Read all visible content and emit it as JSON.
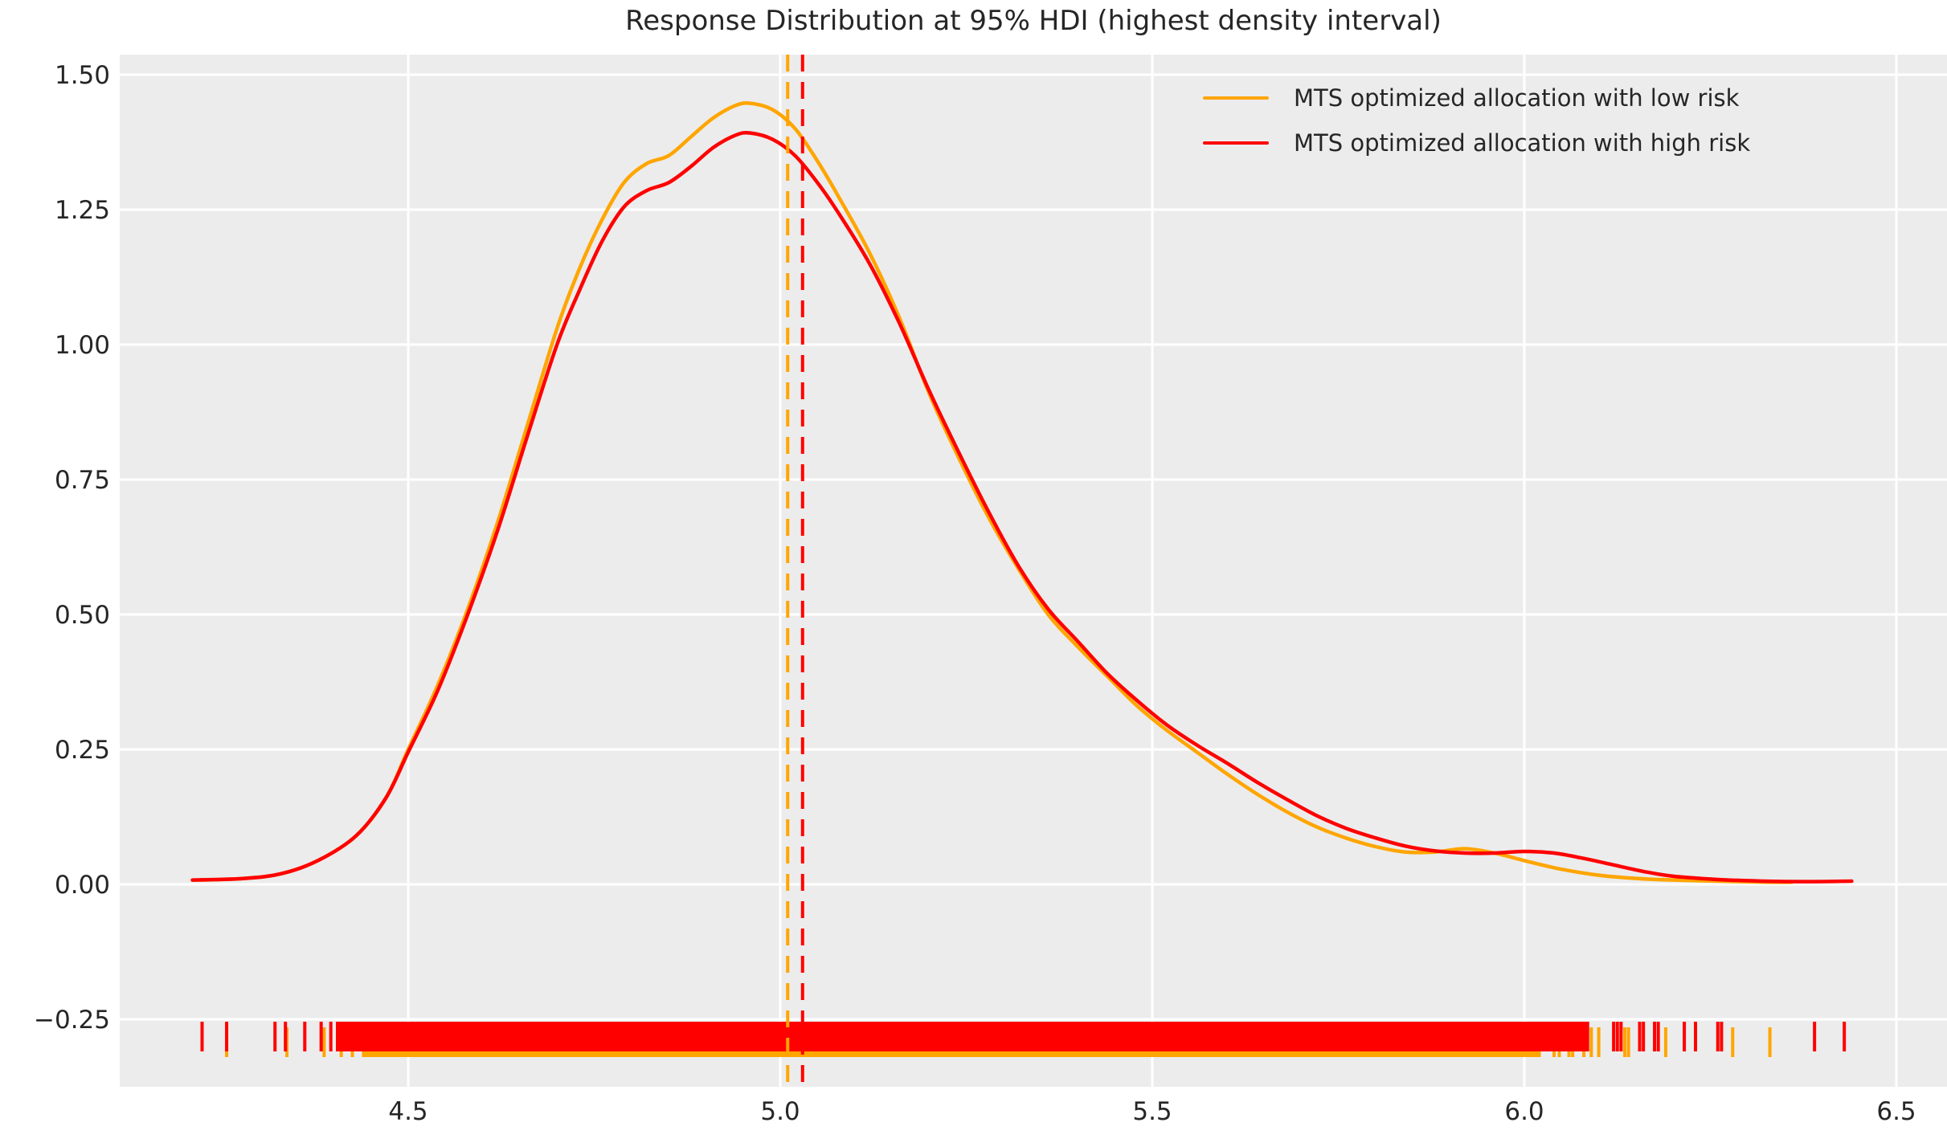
{
  "title": "Response Distribution at 95% HDI (highest density interval)",
  "colors": {
    "low_risk": "#FFA500",
    "high_risk": "#FF0000",
    "plot_background": "#ECECEC",
    "grid": "#FFFFFF",
    "text": "#262626",
    "figure_background": "#FFFFFF"
  },
  "axes": {
    "x_tick_labels": [
      "4.5",
      "5.0",
      "5.5",
      "6.0",
      "6.5"
    ],
    "y_tick_labels": [
      "1.50",
      "1.25",
      "1.00",
      "0.75",
      "0.50",
      "0.25",
      "0.00",
      "−0.25"
    ]
  },
  "chart_data": {
    "type": "line",
    "subtype": "kde-with-rug",
    "title": "Response Distribution at 95% HDI (highest density interval)",
    "xlabel": "",
    "ylabel": "",
    "x_ticks": [
      4.5,
      5.0,
      5.5,
      6.0,
      6.5
    ],
    "y_ticks": [
      1.5,
      1.25,
      1.0,
      0.75,
      0.5,
      0.25,
      0.0,
      -0.25
    ],
    "xlim": [
      4.112,
      6.568
    ],
    "ylim": [
      -0.375,
      1.537
    ],
    "grid": true,
    "legend_position": "upper right",
    "series": [
      {
        "name": "MTS optimized allocation with low risk",
        "color_key": "low_risk",
        "mean_line_x": 5.01,
        "points": [
          [
            4.22,
            0.008
          ],
          [
            4.28,
            0.011
          ],
          [
            4.33,
            0.02
          ],
          [
            4.38,
            0.045
          ],
          [
            4.43,
            0.09
          ],
          [
            4.47,
            0.16
          ],
          [
            4.5,
            0.25
          ],
          [
            4.54,
            0.37
          ],
          [
            4.58,
            0.51
          ],
          [
            4.62,
            0.67
          ],
          [
            4.66,
            0.85
          ],
          [
            4.7,
            1.03
          ],
          [
            4.73,
            1.14
          ],
          [
            4.76,
            1.23
          ],
          [
            4.79,
            1.3
          ],
          [
            4.82,
            1.335
          ],
          [
            4.85,
            1.35
          ],
          [
            4.88,
            1.385
          ],
          [
            4.91,
            1.42
          ],
          [
            4.94,
            1.443
          ],
          [
            4.96,
            1.447
          ],
          [
            4.99,
            1.435
          ],
          [
            5.02,
            1.4
          ],
          [
            5.05,
            1.34
          ],
          [
            5.08,
            1.27
          ],
          [
            5.12,
            1.17
          ],
          [
            5.16,
            1.05
          ],
          [
            5.2,
            0.91
          ],
          [
            5.24,
            0.79
          ],
          [
            5.28,
            0.68
          ],
          [
            5.32,
            0.585
          ],
          [
            5.36,
            0.5
          ],
          [
            5.4,
            0.44
          ],
          [
            5.44,
            0.385
          ],
          [
            5.48,
            0.33
          ],
          [
            5.52,
            0.285
          ],
          [
            5.56,
            0.245
          ],
          [
            5.6,
            0.205
          ],
          [
            5.64,
            0.168
          ],
          [
            5.68,
            0.135
          ],
          [
            5.72,
            0.107
          ],
          [
            5.76,
            0.086
          ],
          [
            5.8,
            0.07
          ],
          [
            5.84,
            0.06
          ],
          [
            5.88,
            0.06
          ],
          [
            5.92,
            0.066
          ],
          [
            5.96,
            0.058
          ],
          [
            6.0,
            0.044
          ],
          [
            6.05,
            0.028
          ],
          [
            6.1,
            0.017
          ],
          [
            6.15,
            0.011
          ],
          [
            6.2,
            0.008
          ],
          [
            6.26,
            0.006
          ],
          [
            6.32,
            0.004
          ],
          [
            6.36,
            0.004
          ]
        ],
        "rug_bands": [
          [
            4.44,
            6.02
          ]
        ],
        "rug_ticks": [
          4.256,
          4.337,
          4.387,
          4.41,
          4.425,
          6.04,
          6.047,
          6.06,
          6.065,
          6.08,
          6.09,
          6.1,
          6.135,
          6.14,
          6.19,
          6.28,
          6.33
        ]
      },
      {
        "name": "MTS optimized allocation with high risk",
        "color_key": "high_risk",
        "mean_line_x": 5.03,
        "points": [
          [
            4.21,
            0.008
          ],
          [
            4.28,
            0.011
          ],
          [
            4.33,
            0.02
          ],
          [
            4.38,
            0.045
          ],
          [
            4.43,
            0.09
          ],
          [
            4.47,
            0.16
          ],
          [
            4.5,
            0.245
          ],
          [
            4.54,
            0.36
          ],
          [
            4.58,
            0.5
          ],
          [
            4.62,
            0.655
          ],
          [
            4.66,
            0.83
          ],
          [
            4.7,
            1.0
          ],
          [
            4.73,
            1.1
          ],
          [
            4.76,
            1.19
          ],
          [
            4.79,
            1.255
          ],
          [
            4.82,
            1.285
          ],
          [
            4.85,
            1.3
          ],
          [
            4.88,
            1.33
          ],
          [
            4.91,
            1.365
          ],
          [
            4.94,
            1.388
          ],
          [
            4.96,
            1.392
          ],
          [
            4.99,
            1.38
          ],
          [
            5.02,
            1.35
          ],
          [
            5.05,
            1.3
          ],
          [
            5.08,
            1.24
          ],
          [
            5.12,
            1.15
          ],
          [
            5.16,
            1.04
          ],
          [
            5.2,
            0.915
          ],
          [
            5.24,
            0.8
          ],
          [
            5.28,
            0.69
          ],
          [
            5.32,
            0.59
          ],
          [
            5.36,
            0.51
          ],
          [
            5.4,
            0.45
          ],
          [
            5.44,
            0.39
          ],
          [
            5.48,
            0.34
          ],
          [
            5.52,
            0.295
          ],
          [
            5.56,
            0.258
          ],
          [
            5.6,
            0.225
          ],
          [
            5.64,
            0.19
          ],
          [
            5.68,
            0.158
          ],
          [
            5.72,
            0.128
          ],
          [
            5.76,
            0.104
          ],
          [
            5.8,
            0.086
          ],
          [
            5.84,
            0.071
          ],
          [
            5.88,
            0.062
          ],
          [
            5.92,
            0.058
          ],
          [
            5.96,
            0.058
          ],
          [
            6.0,
            0.061
          ],
          [
            6.04,
            0.058
          ],
          [
            6.08,
            0.048
          ],
          [
            6.12,
            0.036
          ],
          [
            6.16,
            0.024
          ],
          [
            6.2,
            0.015
          ],
          [
            6.26,
            0.009
          ],
          [
            6.32,
            0.006
          ],
          [
            6.38,
            0.005
          ],
          [
            6.44,
            0.006
          ]
        ],
        "rug_bands": [
          [
            4.405,
            6.085
          ]
        ],
        "rug_ticks": [
          4.223,
          4.256,
          4.321,
          4.335,
          4.361,
          4.383,
          4.396,
          6.12,
          6.125,
          6.13,
          6.155,
          6.16,
          6.175,
          6.18,
          6.215,
          6.23,
          6.26,
          6.265,
          6.39,
          6.43
        ]
      }
    ]
  }
}
